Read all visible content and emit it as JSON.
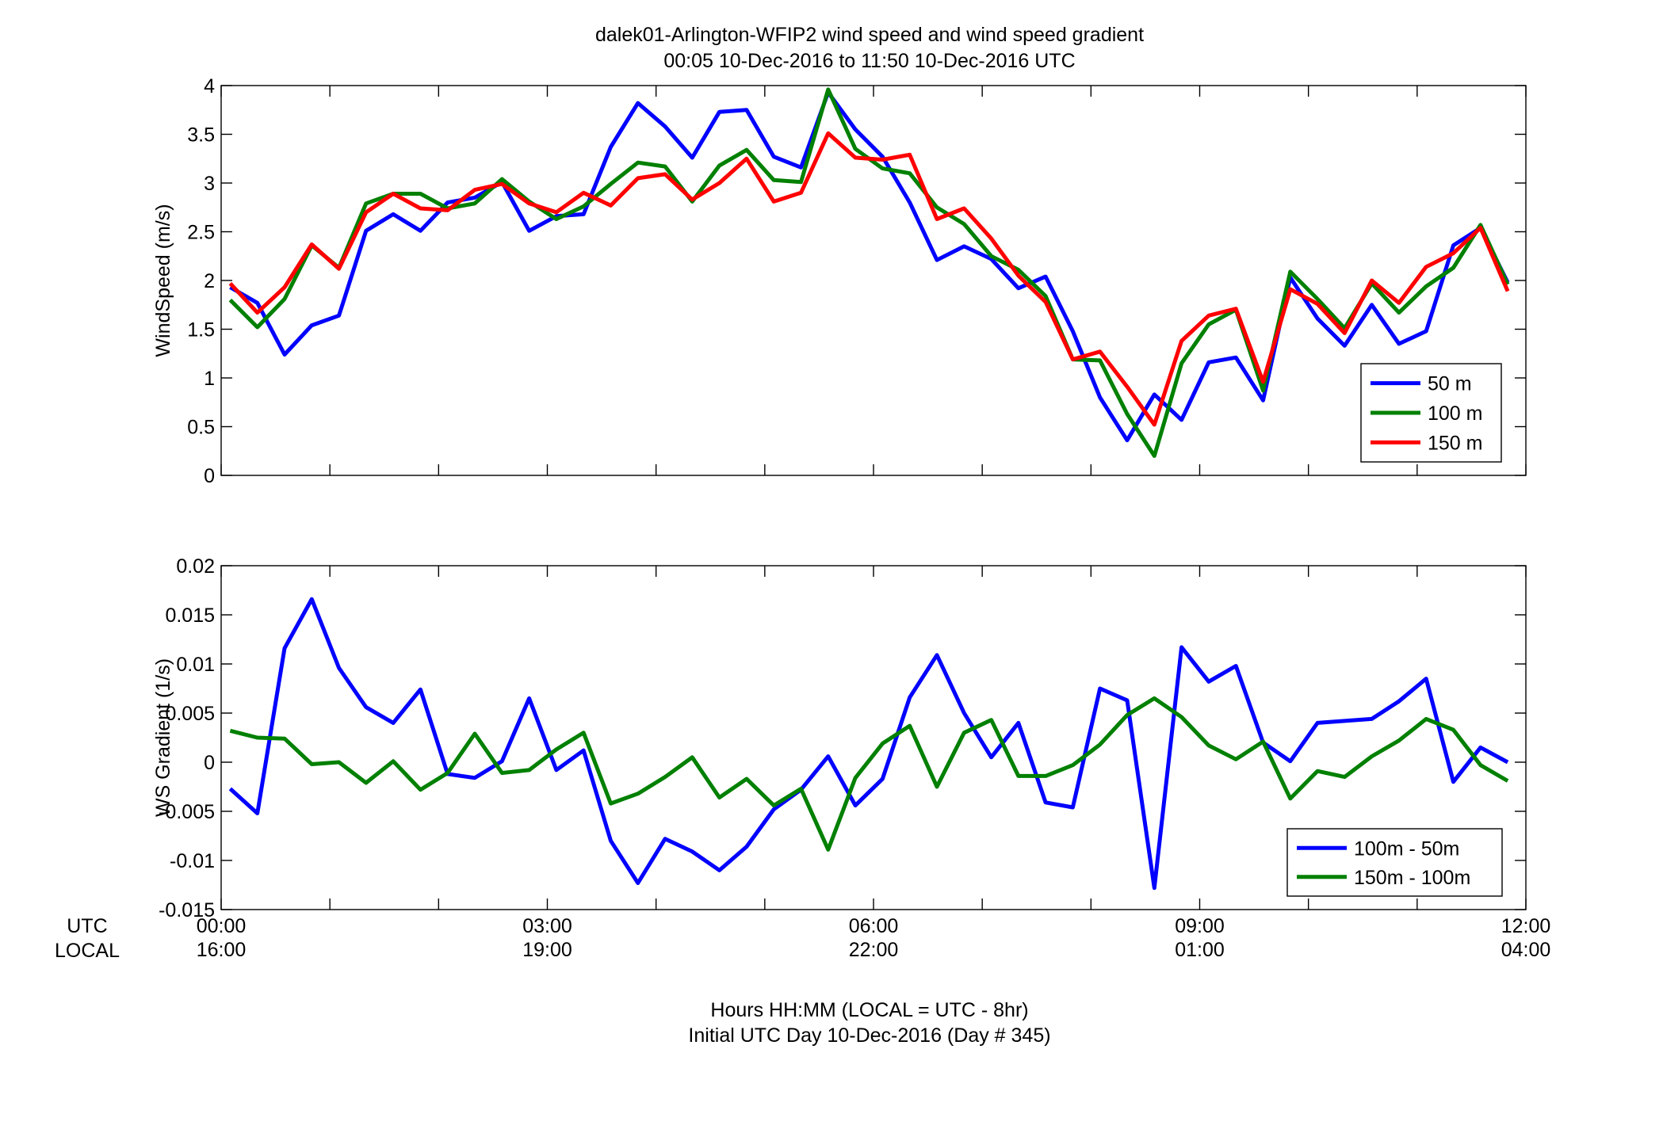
{
  "figure": {
    "title_line1": "dalek01-Arlington-WFIP2  wind speed and wind speed gradient",
    "title_line2": "00:05 10-Dec-2016 to 11:50 10-Dec-2016  UTC",
    "xlabel_line1": "Hours HH:MM  (LOCAL = UTC - 8hr)",
    "xlabel_line2": "Initial UTC Day 10-Dec-2016 (Day # 345)",
    "utc_row_label": "UTC",
    "local_row_label": "LOCAL",
    "utc_ticks": [
      "00:00",
      "03:00",
      "06:00",
      "09:00",
      "12:00"
    ],
    "local_ticks": [
      "16:00",
      "19:00",
      "22:00",
      "01:00",
      "04:00"
    ]
  },
  "chart_data": [
    {
      "type": "line",
      "ylabel": "WindSpeed (m/s)",
      "xlim_hours": [
        0,
        12
      ],
      "ylim": [
        0,
        4
      ],
      "yticks": [
        0,
        0.5,
        1,
        1.5,
        2,
        2.5,
        3,
        3.5,
        4
      ],
      "ytick_labels": [
        "0",
        "0.5",
        "1",
        "1.5",
        "2",
        "2.5",
        "3",
        "3.5",
        "4"
      ],
      "x_hours": [
        0.083,
        0.333,
        0.583,
        0.833,
        1.083,
        1.333,
        1.583,
        1.833,
        2.083,
        2.333,
        2.583,
        2.833,
        3.083,
        3.333,
        3.583,
        3.833,
        4.083,
        4.333,
        4.583,
        4.833,
        5.083,
        5.333,
        5.583,
        5.833,
        6.083,
        6.333,
        6.583,
        6.833,
        7.083,
        7.333,
        7.583,
        7.833,
        8.083,
        8.333,
        8.583,
        8.833,
        9.083,
        9.333,
        9.583,
        9.833,
        10.083,
        10.333,
        10.583,
        10.833,
        11.083,
        11.333,
        11.583,
        11.833
      ],
      "legend_position": "bottom-right",
      "series": [
        {
          "name": "50 m",
          "color": "#0000ff",
          "values": [
            1.93,
            1.77,
            1.24,
            1.54,
            1.64,
            2.51,
            2.68,
            2.51,
            2.8,
            2.85,
            3.01,
            2.51,
            2.66,
            2.68,
            3.37,
            3.82,
            3.58,
            3.26,
            3.73,
            3.75,
            3.27,
            3.16,
            3.93,
            3.55,
            3.27,
            2.8,
            2.21,
            2.35,
            2.22,
            1.92,
            2.04,
            1.48,
            0.8,
            0.36,
            0.83,
            0.57,
            1.16,
            1.21,
            0.77,
            2.03,
            1.61,
            1.33,
            1.75,
            1.35,
            1.48,
            2.36,
            2.54,
            1.98
          ]
        },
        {
          "name": "100 m",
          "color": "#008000",
          "values": [
            1.8,
            1.52,
            1.81,
            2.36,
            2.13,
            2.79,
            2.89,
            2.89,
            2.74,
            2.79,
            3.04,
            2.81,
            2.63,
            2.76,
            2.99,
            3.21,
            3.17,
            2.81,
            3.18,
            3.34,
            3.03,
            3.01,
            3.96,
            3.35,
            3.15,
            3.1,
            2.75,
            2.58,
            2.25,
            2.11,
            1.84,
            1.19,
            1.18,
            0.63,
            0.2,
            1.15,
            1.55,
            1.7,
            0.87,
            2.09,
            1.81,
            1.51,
            1.97,
            1.67,
            1.94,
            2.13,
            2.57,
            1.96
          ]
        },
        {
          "name": "150 m",
          "color": "#ff0000",
          "values": [
            1.97,
            1.67,
            1.93,
            2.37,
            2.12,
            2.7,
            2.89,
            2.74,
            2.72,
            2.93,
            2.99,
            2.79,
            2.7,
            2.9,
            2.77,
            3.05,
            3.09,
            2.83,
            3.0,
            3.25,
            2.81,
            2.9,
            3.51,
            3.26,
            3.24,
            3.29,
            2.63,
            2.74,
            2.43,
            2.05,
            1.78,
            1.19,
            1.27,
            0.91,
            0.52,
            1.38,
            1.64,
            1.71,
            0.96,
            1.91,
            1.76,
            1.46,
            2.0,
            1.77,
            2.14,
            2.28,
            2.54,
            1.89
          ]
        }
      ]
    },
    {
      "type": "line",
      "ylabel": "WS Gradient (1/s)",
      "xlim_hours": [
        0,
        12
      ],
      "ylim": [
        -0.015,
        0.02
      ],
      "yticks": [
        -0.015,
        -0.01,
        -0.005,
        0,
        0.005,
        0.01,
        0.015,
        0.02
      ],
      "ytick_labels": [
        "-0.015",
        "-0.01",
        "-0.005",
        "0",
        "0.005",
        "0.01",
        "0.015",
        "0.02"
      ],
      "x_hours": [
        0.083,
        0.333,
        0.583,
        0.833,
        1.083,
        1.333,
        1.583,
        1.833,
        2.083,
        2.333,
        2.583,
        2.833,
        3.083,
        3.333,
        3.583,
        3.833,
        4.083,
        4.333,
        4.583,
        4.833,
        5.083,
        5.333,
        5.583,
        5.833,
        6.083,
        6.333,
        6.583,
        6.833,
        7.083,
        7.333,
        7.583,
        7.833,
        8.083,
        8.333,
        8.583,
        8.833,
        9.083,
        9.333,
        9.583,
        9.833,
        10.083,
        10.333,
        10.583,
        10.833,
        11.083,
        11.333,
        11.583,
        11.833
      ],
      "legend_position": "bottom-right",
      "series": [
        {
          "name": "100m - 50m",
          "color": "#0000ff",
          "values": [
            -0.0027,
            -0.0052,
            0.0116,
            0.0166,
            0.0096,
            0.0056,
            0.004,
            0.0074,
            -0.0012,
            -0.0016,
            0.0001,
            0.0065,
            -0.0008,
            0.0012,
            -0.008,
            -0.0123,
            -0.0078,
            -0.0091,
            -0.011,
            -0.0086,
            -0.0048,
            -0.0028,
            0.0006,
            -0.0044,
            -0.0017,
            0.0066,
            0.0109,
            0.005,
            0.0005,
            0.004,
            -0.0041,
            -0.0046,
            0.0075,
            0.0063,
            -0.0128,
            0.0117,
            0.0082,
            0.0098,
            0.002,
            0.0001,
            0.004,
            0.0042,
            0.0044,
            0.0062,
            0.0085,
            -0.002,
            0.0015,
            0.0
          ]
        },
        {
          "name": "150m - 100m",
          "color": "#008000",
          "values": [
            0.0032,
            0.0025,
            0.0024,
            -0.0002,
            0.0,
            -0.0021,
            0.0001,
            -0.0028,
            -0.0011,
            0.0029,
            -0.0011,
            -0.0008,
            0.0013,
            0.003,
            -0.0042,
            -0.0032,
            -0.0015,
            0.0005,
            -0.0036,
            -0.0017,
            -0.0044,
            -0.0027,
            -0.0089,
            -0.0016,
            0.0019,
            0.0037,
            -0.0025,
            0.003,
            0.0043,
            -0.0014,
            -0.0014,
            -0.0003,
            0.0018,
            0.0048,
            0.0065,
            0.0046,
            0.0017,
            0.0003,
            0.0021,
            -0.0037,
            -0.0009,
            -0.0015,
            0.0006,
            0.0022,
            0.0044,
            0.0033,
            -0.0003,
            -0.0019
          ]
        }
      ]
    }
  ]
}
